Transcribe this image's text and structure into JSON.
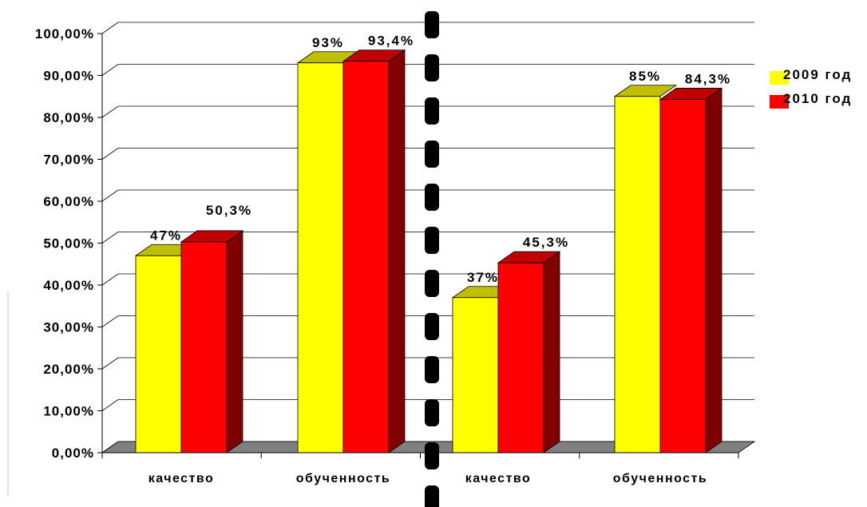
{
  "chart_data": {
    "type": "bar",
    "categories": [
      "качество",
      "обученность",
      "качество",
      "обученность"
    ],
    "series": [
      {
        "name": "2009 год",
        "values": [
          47,
          93,
          37,
          85
        ],
        "labels": [
          "47%",
          "93%",
          "37%",
          "85%"
        ]
      },
      {
        "name": "2010 год",
        "values": [
          50.3,
          93.4,
          45.3,
          84.3
        ],
        "labels": [
          "50,3%",
          "93,4%",
          "45,3%",
          "84,3%"
        ]
      }
    ],
    "yticks": [
      "0,00%",
      "10,00%",
      "20,00%",
      "30,00%",
      "40,00%",
      "50,00%",
      "60,00%",
      "70,00%",
      "80,00%",
      "90,00%",
      "100,00%"
    ],
    "ylim": [
      0,
      100
    ],
    "ylabel": "",
    "xlabel": "",
    "title": "",
    "grid": true,
    "legend": "right",
    "colors": {
      "series1_front": "#ffff00",
      "series1_top": "#bfbf00",
      "series2_front": "#ff0000",
      "series2_top": "#c00000",
      "series2_side": "#800000",
      "floor": "#808080"
    }
  }
}
